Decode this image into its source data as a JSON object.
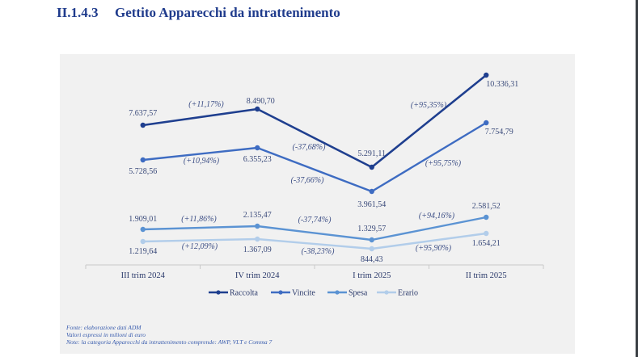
{
  "heading": {
    "number": "II.1.4.3",
    "text": "Gettito Apparecchi da intrattenimento"
  },
  "chart_data": {
    "type": "line",
    "title": "",
    "xlabel": "",
    "ylabel": "",
    "categories": [
      "III trim 2024",
      "IV trim 2024",
      "I trim 2025",
      "II trim 2025"
    ],
    "series": [
      {
        "name": "Raccolta",
        "color": "#1f3f8f",
        "values": [
          7637.57,
          8490.7,
          5291.11,
          10336.31
        ],
        "labels": [
          "7.637,57",
          "8.490,70",
          "5.291,11",
          "10.336,31"
        ],
        "changes": [
          "(+11,17%)",
          "(-37,68%)",
          "(+95,35%)"
        ]
      },
      {
        "name": "Vincite",
        "color": "#3e6cc2",
        "values": [
          5728.56,
          6355.23,
          3961.54,
          7754.79
        ],
        "labels": [
          "5.728,56",
          "6.355,23",
          "3.961,54",
          "7.754,79"
        ],
        "changes": [
          "(+10,94%)",
          "(-37,66%)",
          "(+95,75%)"
        ]
      },
      {
        "name": "Spesa",
        "color": "#5b93d3",
        "values": [
          1909.01,
          2135.47,
          1329.57,
          2581.52
        ],
        "labels": [
          "1.909,01",
          "2.135,47",
          "1.329,57",
          "2.581,52"
        ],
        "changes": [
          "(+11,86%)",
          "(-37,74%)",
          "(+94,16%)"
        ]
      },
      {
        "name": "Erario",
        "color": "#b2cdea",
        "values": [
          1219.64,
          1367.09,
          844.43,
          1654.21
        ],
        "labels": [
          "1.219,64",
          "1.367,09",
          "844,43",
          "1.654,21"
        ],
        "changes": [
          "(+12,09%)",
          "(-38,23%)",
          "(+95,90%)"
        ]
      }
    ],
    "legend_position": "bottom-center",
    "grid": false
  },
  "notes": [
    "Fonte: elaborazione dati ADM",
    "Valori espressi in milioni di euro",
    "Note: la categoria Apparecchi da intrattenimento comprende: AWP, VLT e Comma 7"
  ],
  "colors": {
    "title": "#1f3b8c",
    "panel_bg": "#f1f1f1",
    "text": "#3a4a7a",
    "notes": "#3a5dae"
  }
}
